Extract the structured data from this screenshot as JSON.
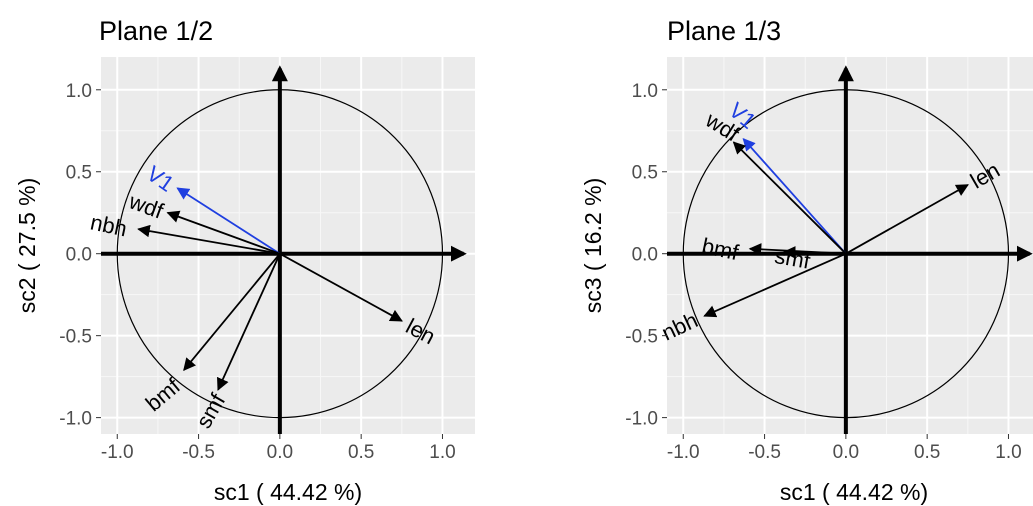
{
  "chart_data": [
    {
      "type": "correlation-circle",
      "title": "Plane 1/2",
      "xlabel": "sc1 ( 44.42 %)",
      "ylabel": "sc2 ( 27.5 %)",
      "xlim": [
        -1.1,
        1.2
      ],
      "ylim": [
        -1.1,
        1.2
      ],
      "xticks": [
        "-1.0",
        "-0.5",
        "0.0",
        "0.5",
        "1.0"
      ],
      "yticks": [
        "1.0",
        "0.5",
        "0.0",
        "-0.5",
        "-1.0"
      ],
      "tick_values": [
        -1.0,
        -0.5,
        0.0,
        0.5,
        1.0
      ],
      "grid": true,
      "vectors": [
        {
          "label": "V1",
          "x": -0.63,
          "y": 0.4,
          "color": "#1f3fe0"
        },
        {
          "label": "wdf",
          "x": -0.69,
          "y": 0.25,
          "color": "#000000"
        },
        {
          "label": "nbh",
          "x": -0.87,
          "y": 0.15,
          "color": "#000000"
        },
        {
          "label": "bmf",
          "x": -0.59,
          "y": -0.71,
          "color": "#000000"
        },
        {
          "label": "smf",
          "x": -0.38,
          "y": -0.83,
          "color": "#000000"
        },
        {
          "label": "len",
          "x": 0.75,
          "y": -0.41,
          "color": "#000000"
        }
      ]
    },
    {
      "type": "correlation-circle",
      "title": "Plane 1/3",
      "xlabel": "sc1 ( 44.42 %)",
      "ylabel": "sc3 ( 16.2 %)",
      "xlim": [
        -1.1,
        1.2
      ],
      "ylim": [
        -1.1,
        1.2
      ],
      "xticks": [
        "-1.0",
        "-0.5",
        "0.0",
        "0.5",
        "1.0"
      ],
      "yticks": [
        "1.0",
        "0.5",
        "0.0",
        "-0.5",
        "-1.0"
      ],
      "tick_values": [
        -1.0,
        -0.5,
        0.0,
        0.5,
        1.0
      ],
      "grid": true,
      "vectors": [
        {
          "label": "V1",
          "x": -0.63,
          "y": 0.7,
          "color": "#1f3fe0"
        },
        {
          "label": "wdf",
          "x": -0.69,
          "y": 0.68,
          "color": "#000000"
        },
        {
          "label": "bmf",
          "x": -0.59,
          "y": 0.03,
          "color": "#000000"
        },
        {
          "label": "smf",
          "x": -0.38,
          "y": 0.01,
          "color": "#000000"
        },
        {
          "label": "nbh",
          "x": -0.87,
          "y": -0.38,
          "color": "#000000"
        },
        {
          "label": "len",
          "x": 0.75,
          "y": 0.42,
          "color": "#000000"
        }
      ]
    }
  ]
}
